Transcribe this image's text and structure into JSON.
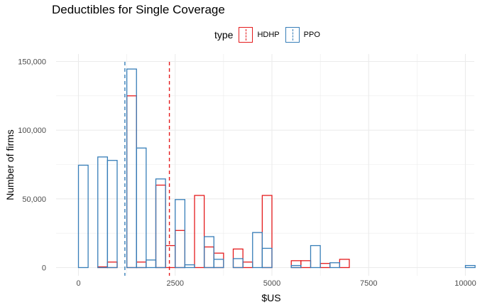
{
  "chart_data": {
    "type": "bar",
    "title": "Deductibles for Single Coverage",
    "xlabel": "$US",
    "ylabel": "Number of firms",
    "legend_title": "type",
    "legend_position": "top",
    "grid": true,
    "xlim": [
      -500,
      10400
    ],
    "ylim": [
      0,
      150000
    ],
    "x_ticks": [
      0,
      2500,
      5000,
      7500,
      10000
    ],
    "x_tick_labels": [
      "0",
      "2500",
      "5000",
      "7500",
      "10000"
    ],
    "y_ticks": [
      0,
      50000,
      100000,
      150000
    ],
    "y_tick_labels": [
      "0",
      "50,000",
      "100,000",
      "150,000"
    ],
    "bin_width": 250,
    "series": [
      {
        "name": "HDHP",
        "color": "#e41a1c",
        "mean": 2350,
        "bins": [
          [
            -125,
            0
          ],
          [
            125,
            0
          ],
          [
            375,
            0
          ],
          [
            625,
            500
          ],
          [
            875,
            4000
          ],
          [
            1125,
            0
          ],
          [
            1375,
            125000
          ],
          [
            1625,
            4000
          ],
          [
            1875,
            0
          ],
          [
            2125,
            60000
          ],
          [
            2375,
            16000
          ],
          [
            2625,
            27000
          ],
          [
            2875,
            0
          ],
          [
            3125,
            52500
          ],
          [
            3375,
            15000
          ],
          [
            3625,
            10500
          ],
          [
            3875,
            0
          ],
          [
            4125,
            13500
          ],
          [
            4375,
            4000
          ],
          [
            4625,
            0
          ],
          [
            4875,
            52500
          ],
          [
            5125,
            0
          ],
          [
            5375,
            0
          ],
          [
            5625,
            5000
          ],
          [
            5875,
            5000
          ],
          [
            6125,
            0
          ],
          [
            6375,
            3000
          ],
          [
            6625,
            0
          ],
          [
            6875,
            6000
          ],
          [
            7125,
            0
          ],
          [
            7375,
            0
          ],
          [
            7625,
            0
          ],
          [
            7875,
            0
          ],
          [
            8125,
            0
          ],
          [
            8375,
            0
          ],
          [
            8625,
            0
          ],
          [
            8875,
            0
          ],
          [
            9125,
            0
          ],
          [
            9375,
            0
          ],
          [
            9625,
            0
          ],
          [
            9875,
            0
          ],
          [
            10125,
            0
          ]
        ]
      },
      {
        "name": "PPO",
        "color": "#377eb8",
        "mean": 1200,
        "bins": [
          [
            -125,
            0
          ],
          [
            125,
            74500
          ],
          [
            375,
            0
          ],
          [
            625,
            80500
          ],
          [
            875,
            78000
          ],
          [
            1125,
            0
          ],
          [
            1375,
            144500
          ],
          [
            1625,
            87000
          ],
          [
            1875,
            5500
          ],
          [
            2125,
            64500
          ],
          [
            2375,
            0
          ],
          [
            2625,
            49500
          ],
          [
            2875,
            2000
          ],
          [
            3125,
            0
          ],
          [
            3375,
            22500
          ],
          [
            3625,
            6000
          ],
          [
            3875,
            0
          ],
          [
            4125,
            6500
          ],
          [
            4375,
            0
          ],
          [
            4625,
            25500
          ],
          [
            4875,
            14000
          ],
          [
            5125,
            0
          ],
          [
            5375,
            0
          ],
          [
            5625,
            1500
          ],
          [
            5875,
            0
          ],
          [
            6125,
            16000
          ],
          [
            6375,
            0
          ],
          [
            6625,
            3500
          ],
          [
            6875,
            0
          ],
          [
            7125,
            0
          ],
          [
            7375,
            0
          ],
          [
            7625,
            0
          ],
          [
            7875,
            0
          ],
          [
            8125,
            0
          ],
          [
            8375,
            0
          ],
          [
            8625,
            0
          ],
          [
            8875,
            0
          ],
          [
            9125,
            0
          ],
          [
            9375,
            0
          ],
          [
            9625,
            0
          ],
          [
            9875,
            0
          ],
          [
            10125,
            1500
          ]
        ]
      }
    ]
  }
}
